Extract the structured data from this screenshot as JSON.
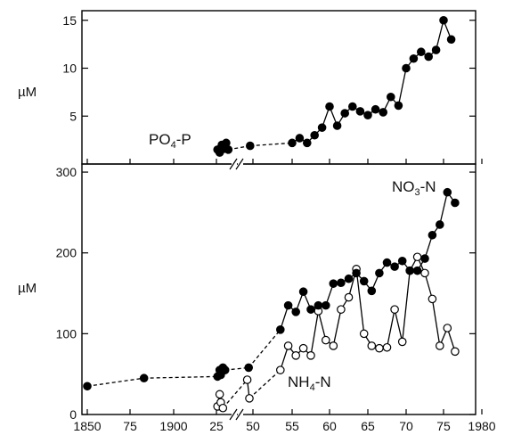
{
  "chart_data": [
    {
      "panel": "top",
      "type": "line",
      "ylabel": "µM",
      "ylim": [
        0,
        16
      ],
      "yticks": [
        5,
        10,
        15
      ],
      "grid": false,
      "series": [
        {
          "name": "PO4-P",
          "label": {
            "main": "PO",
            "sub": "4",
            "rest": "-P"
          },
          "marker": "filled",
          "points": [
            {
              "x": 1925.5,
              "y": 1.5
            },
            {
              "x": 1926.5,
              "y": 1.2
            },
            {
              "x": 1927.5,
              "y": 2.0
            },
            {
              "x": 1928.5,
              "y": 1.6
            },
            {
              "x": 1929.5,
              "y": 2.2
            },
            {
              "x": 1930.5,
              "y": 1.5
            },
            {
              "x": 1948,
              "y": 1.9
            },
            {
              "x": 1955,
              "y": 2.2
            },
            {
              "x": 1956,
              "y": 2.7
            },
            {
              "x": 1957,
              "y": 2.2
            },
            {
              "x": 1958,
              "y": 3.0
            },
            {
              "x": 1959,
              "y": 3.8
            },
            {
              "x": 1960,
              "y": 6.0
            },
            {
              "x": 1961,
              "y": 4.0
            },
            {
              "x": 1962,
              "y": 5.3
            },
            {
              "x": 1963,
              "y": 6.0
            },
            {
              "x": 1964,
              "y": 5.5
            },
            {
              "x": 1965,
              "y": 5.1
            },
            {
              "x": 1966,
              "y": 5.7
            },
            {
              "x": 1967,
              "y": 5.4
            },
            {
              "x": 1968,
              "y": 7.0
            },
            {
              "x": 1969,
              "y": 6.1
            },
            {
              "x": 1970,
              "y": 10.0
            },
            {
              "x": 1971,
              "y": 11.0
            },
            {
              "x": 1972,
              "y": 11.7
            },
            {
              "x": 1973,
              "y": 11.2
            },
            {
              "x": 1974,
              "y": 11.9
            },
            {
              "x": 1975,
              "y": 15.0
            },
            {
              "x": 1976,
              "y": 13.0
            }
          ]
        }
      ]
    },
    {
      "panel": "bottom",
      "type": "line",
      "ylabel": "µM",
      "ylim": [
        0,
        310
      ],
      "yticks": [
        0,
        100,
        200,
        300
      ],
      "xticks": [
        {
          "x": 1850,
          "label": "1850"
        },
        {
          "x": 1875,
          "label": "75"
        },
        {
          "x": 1900,
          "label": "1900"
        },
        {
          "x": 1925,
          "label": "25"
        },
        {
          "x": 1950,
          "label": "50"
        },
        {
          "x": 1955,
          "label": "55"
        },
        {
          "x": 1960,
          "label": "60"
        },
        {
          "x": 1965,
          "label": "65"
        },
        {
          "x": 1970,
          "label": "70"
        },
        {
          "x": 1975,
          "label": "75"
        },
        {
          "x": 1980,
          "label": "1980"
        }
      ],
      "grid": false,
      "series": [
        {
          "name": "NO3-N",
          "label": {
            "main": "NO",
            "sub": "3",
            "rest": "-N"
          },
          "marker": "filled",
          "points": [
            {
              "x": 1850,
              "y": 35
            },
            {
              "x": 1883,
              "y": 45
            },
            {
              "x": 1925.5,
              "y": 47
            },
            {
              "x": 1926.5,
              "y": 55
            },
            {
              "x": 1927,
              "y": 49
            },
            {
              "x": 1928,
              "y": 58
            },
            {
              "x": 1929,
              "y": 55
            },
            {
              "x": 1947,
              "y": 58
            },
            {
              "x": 1953.5,
              "y": 105
            },
            {
              "x": 1954.5,
              "y": 135
            },
            {
              "x": 1955.5,
              "y": 127
            },
            {
              "x": 1956.5,
              "y": 152
            },
            {
              "x": 1957.5,
              "y": 130
            },
            {
              "x": 1958.5,
              "y": 135
            },
            {
              "x": 1959.5,
              "y": 135
            },
            {
              "x": 1960.5,
              "y": 162
            },
            {
              "x": 1961.5,
              "y": 163
            },
            {
              "x": 1962.5,
              "y": 168
            },
            {
              "x": 1963.5,
              "y": 175
            },
            {
              "x": 1964.5,
              "y": 165
            },
            {
              "x": 1965.5,
              "y": 153
            },
            {
              "x": 1966.5,
              "y": 175
            },
            {
              "x": 1967.5,
              "y": 188
            },
            {
              "x": 1968.5,
              "y": 183
            },
            {
              "x": 1969.5,
              "y": 190
            },
            {
              "x": 1970.5,
              "y": 178
            },
            {
              "x": 1971.5,
              "y": 178
            },
            {
              "x": 1972.5,
              "y": 193
            },
            {
              "x": 1973.5,
              "y": 222
            },
            {
              "x": 1974.5,
              "y": 235
            },
            {
              "x": 1975.5,
              "y": 275
            },
            {
              "x": 1976.5,
              "y": 262
            }
          ]
        },
        {
          "name": "NH4-N",
          "label": {
            "main": "NH",
            "sub": "4",
            "rest": "-N"
          },
          "marker": "open",
          "points": [
            {
              "x": 1925.5,
              "y": 10
            },
            {
              "x": 1926.5,
              "y": 25
            },
            {
              "x": 1927,
              "y": 15
            },
            {
              "x": 1928,
              "y": 8
            },
            {
              "x": 1946,
              "y": 43
            },
            {
              "x": 1947.5,
              "y": 20
            },
            {
              "x": 1953.5,
              "y": 55
            },
            {
              "x": 1954.5,
              "y": 85
            },
            {
              "x": 1955.5,
              "y": 73
            },
            {
              "x": 1956.5,
              "y": 82
            },
            {
              "x": 1957.5,
              "y": 73
            },
            {
              "x": 1958.5,
              "y": 128
            },
            {
              "x": 1959.5,
              "y": 92
            },
            {
              "x": 1960.5,
              "y": 85
            },
            {
              "x": 1961.5,
              "y": 130
            },
            {
              "x": 1962.5,
              "y": 145
            },
            {
              "x": 1963.5,
              "y": 180
            },
            {
              "x": 1964.5,
              "y": 100
            },
            {
              "x": 1965.5,
              "y": 85
            },
            {
              "x": 1966.5,
              "y": 82
            },
            {
              "x": 1967.5,
              "y": 83
            },
            {
              "x": 1968.5,
              "y": 130
            },
            {
              "x": 1969.5,
              "y": 90
            },
            {
              "x": 1970.5,
              "y": 178
            },
            {
              "x": 1971.5,
              "y": 195
            },
            {
              "x": 1972.5,
              "y": 175
            },
            {
              "x": 1973.5,
              "y": 143
            },
            {
              "x": 1974.5,
              "y": 85
            },
            {
              "x": 1975.5,
              "y": 107
            },
            {
              "x": 1976.5,
              "y": 78
            }
          ]
        }
      ]
    }
  ]
}
